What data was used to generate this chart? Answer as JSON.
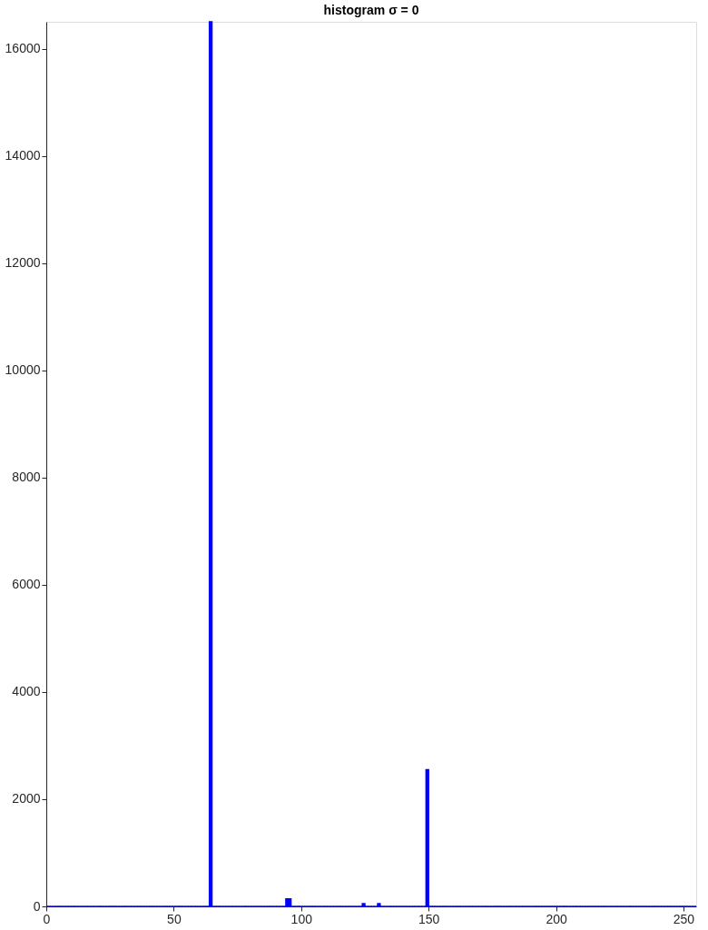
{
  "chart_data": {
    "type": "histogram",
    "title": "histogram σ = 0",
    "color": "#0000ff",
    "bins": [
      0,
      1,
      2,
      3,
      4,
      5,
      6,
      7,
      8,
      9,
      10,
      11,
      12,
      13,
      14,
      15,
      16,
      17,
      18,
      19,
      20,
      21,
      22,
      23,
      24,
      25,
      26,
      27,
      28,
      29,
      30,
      31,
      32,
      33,
      34,
      35,
      36,
      37,
      38,
      39,
      40,
      41,
      42,
      43,
      44,
      45,
      46,
      47,
      48,
      49,
      50,
      51,
      52,
      53,
      54,
      55,
      56,
      57,
      58,
      59,
      60,
      61,
      62,
      63,
      64,
      65,
      66,
      67,
      68,
      69,
      70,
      71,
      72,
      73,
      74,
      75,
      76,
      77,
      78,
      79,
      80,
      81,
      82,
      83,
      84,
      85,
      86,
      87,
      88,
      89,
      90,
      91,
      92,
      93,
      94,
      95,
      96,
      97,
      98,
      99,
      100,
      101,
      102,
      103,
      104,
      105,
      106,
      107,
      108,
      109,
      110,
      111,
      112,
      113,
      114,
      115,
      116,
      117,
      118,
      119,
      120,
      121,
      122,
      123,
      124,
      125,
      126,
      127,
      128,
      129,
      130,
      131,
      132,
      133,
      134,
      135,
      136,
      137,
      138,
      139,
      140,
      141,
      142,
      143,
      144,
      145,
      146,
      147,
      148,
      149,
      150,
      151,
      152,
      153,
      154,
      155,
      156,
      157,
      158,
      159,
      160,
      161,
      162,
      163,
      164,
      165,
      166,
      167,
      168,
      169,
      170,
      171,
      172,
      173,
      174,
      175,
      176,
      177,
      178,
      179,
      180,
      181,
      182,
      183,
      184,
      185,
      186,
      187,
      188,
      189,
      190,
      191,
      192,
      193,
      194,
      195,
      196,
      197,
      198,
      199,
      200,
      201,
      202,
      203,
      204,
      205,
      206,
      207,
      208,
      209,
      210,
      211,
      212,
      213,
      214,
      215,
      216,
      217,
      218,
      219,
      220,
      221,
      222,
      223,
      224,
      225,
      226,
      227,
      228,
      229,
      230,
      231,
      232,
      233,
      234,
      235,
      236,
      237,
      238,
      239,
      240,
      241,
      242,
      243,
      244,
      245,
      246,
      247,
      248,
      249,
      250,
      251,
      252,
      253,
      254,
      255
    ],
    "values": [
      0,
      0,
      0,
      0,
      0,
      0,
      0,
      0,
      0,
      0,
      0,
      0,
      0,
      0,
      0,
      0,
      0,
      0,
      0,
      0,
      0,
      0,
      0,
      0,
      0,
      0,
      0,
      0,
      0,
      0,
      0,
      0,
      0,
      0,
      0,
      0,
      0,
      0,
      0,
      0,
      0,
      0,
      0,
      0,
      0,
      0,
      0,
      0,
      0,
      0,
      0,
      0,
      0,
      0,
      0,
      0,
      0,
      0,
      0,
      0,
      0,
      0,
      0,
      0,
      16500,
      0,
      0,
      0,
      0,
      0,
      0,
      0,
      0,
      0,
      0,
      0,
      0,
      0,
      0,
      0,
      0,
      0,
      0,
      0,
      0,
      0,
      0,
      0,
      0,
      0,
      0,
      0,
      0,
      0,
      140,
      140,
      0,
      0,
      0,
      0,
      0,
      0,
      0,
      0,
      0,
      0,
      0,
      0,
      0,
      0,
      0,
      0,
      0,
      0,
      0,
      0,
      0,
      0,
      0,
      0,
      0,
      0,
      0,
      0,
      50,
      0,
      0,
      0,
      0,
      0,
      50,
      0,
      0,
      0,
      0,
      0,
      0,
      0,
      0,
      0,
      0,
      0,
      0,
      0,
      0,
      0,
      0,
      0,
      0,
      2550,
      0,
      0,
      0,
      0,
      0,
      0,
      0,
      0,
      0,
      0,
      0,
      0,
      0,
      0,
      0,
      0,
      0,
      0,
      0,
      0,
      0,
      0,
      0,
      0,
      0,
      0,
      0,
      0,
      0,
      0,
      0,
      0,
      0,
      0,
      0,
      0,
      0,
      0,
      0,
      0,
      0,
      0,
      0,
      0,
      0,
      0,
      0,
      0,
      0,
      0,
      0,
      0,
      0,
      0,
      0,
      0,
      0,
      0,
      0,
      0,
      0,
      0,
      0,
      0,
      0,
      0,
      0,
      0,
      0,
      0,
      0,
      0,
      0,
      0,
      0,
      0,
      0,
      0,
      0,
      0,
      0,
      0,
      0,
      0,
      0,
      0,
      0,
      0,
      0,
      0,
      0,
      0,
      0,
      0,
      0,
      0,
      0,
      0,
      0,
      0,
      0,
      0,
      0,
      0,
      0
    ],
    "xlim": [
      0,
      255
    ],
    "ylim": [
      0,
      16500
    ],
    "xticks": [
      0,
      50,
      100,
      150,
      200,
      250
    ],
    "yticks": [
      0,
      2000,
      4000,
      6000,
      8000,
      10000,
      12000,
      14000,
      16000
    ],
    "grid": false
  }
}
